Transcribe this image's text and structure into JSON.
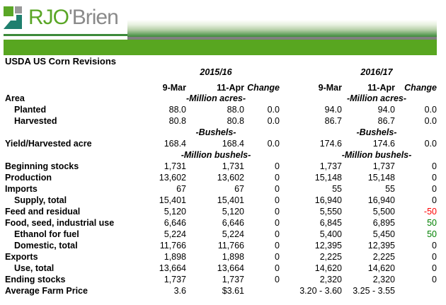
{
  "logo": {
    "text_a": "RJO",
    "text_b": "'Brien"
  },
  "title": "USDA US Corn Revisions",
  "years": [
    "2015/16",
    "2016/17"
  ],
  "col_headers": [
    "9-Mar",
    "11-Apr",
    "Change",
    "9-Mar",
    "11-Apr",
    "Change"
  ],
  "colors": {
    "brand_green": "#58a620",
    "negative": "#ff0000",
    "positive": "#008000"
  },
  "rows": [
    {
      "label": "Area",
      "bold": true,
      "indent": false,
      "units": "-Million acres-"
    },
    {
      "label": "Planted",
      "bold": true,
      "indent": true,
      "values": [
        "88.0",
        "88.0",
        "0.0",
        "94.0",
        "94.0",
        "0.0"
      ]
    },
    {
      "label": "Harvested",
      "bold": true,
      "indent": true,
      "values": [
        "80.8",
        "80.8",
        "0.0",
        "86.7",
        "86.7",
        "0.0"
      ]
    },
    {
      "label": "",
      "units": "-Bushels-"
    },
    {
      "label": "Yield/Harvested acre",
      "bold": true,
      "values": [
        "168.4",
        "168.4",
        "0.0",
        "174.6",
        "174.6",
        "0.0"
      ]
    },
    {
      "label": "",
      "units": "-Million bushels-"
    },
    {
      "label": "Beginning stocks",
      "bold": true,
      "values": [
        "1,731",
        "1,731",
        "0",
        "1,737",
        "1,737",
        "0"
      ]
    },
    {
      "label": "Production",
      "bold": true,
      "values": [
        "13,602",
        "13,602",
        "0",
        "15,148",
        "15,148",
        "0"
      ]
    },
    {
      "label": "Imports",
      "bold": true,
      "values": [
        "67",
        "67",
        "0",
        "55",
        "55",
        "0"
      ]
    },
    {
      "label": "Supply, total",
      "bold": true,
      "indent": true,
      "values": [
        "15,401",
        "15,401",
        "0",
        "16,940",
        "16,940",
        "0"
      ]
    },
    {
      "label": "Feed and residual",
      "bold": true,
      "values": [
        "5,120",
        "5,120",
        "0",
        "5,550",
        "5,500",
        "-50"
      ],
      "change_color": "negative"
    },
    {
      "label": "Food, seed, industrial use",
      "bold": true,
      "values": [
        "6,646",
        "6,646",
        "0",
        "6,845",
        "6,895",
        "50"
      ],
      "change_color": "positive"
    },
    {
      "label": "Ethanol for fuel",
      "bold": true,
      "indent": true,
      "values": [
        "5,224",
        "5,224",
        "0",
        "5,400",
        "5,450",
        "50"
      ],
      "change_color": "positive"
    },
    {
      "label": "Domestic, total",
      "bold": true,
      "indent": true,
      "values": [
        "11,766",
        "11,766",
        "0",
        "12,395",
        "12,395",
        "0"
      ]
    },
    {
      "label": "Exports",
      "bold": true,
      "values": [
        "1,898",
        "1,898",
        "0",
        "2,225",
        "2,225",
        "0"
      ]
    },
    {
      "label": "Use, total",
      "bold": true,
      "indent": true,
      "values": [
        "13,664",
        "13,664",
        "0",
        "14,620",
        "14,620",
        "0"
      ]
    },
    {
      "label": "Ending stocks",
      "bold": true,
      "values": [
        "1,737",
        "1,737",
        "0",
        "2,320",
        "2,320",
        "0"
      ]
    },
    {
      "label": "Average Farm Price",
      "bold": true,
      "values": [
        "3.6",
        "$3.61",
        "",
        "3.20 - 3.60",
        "3.25 - 3.55",
        ""
      ]
    }
  ]
}
